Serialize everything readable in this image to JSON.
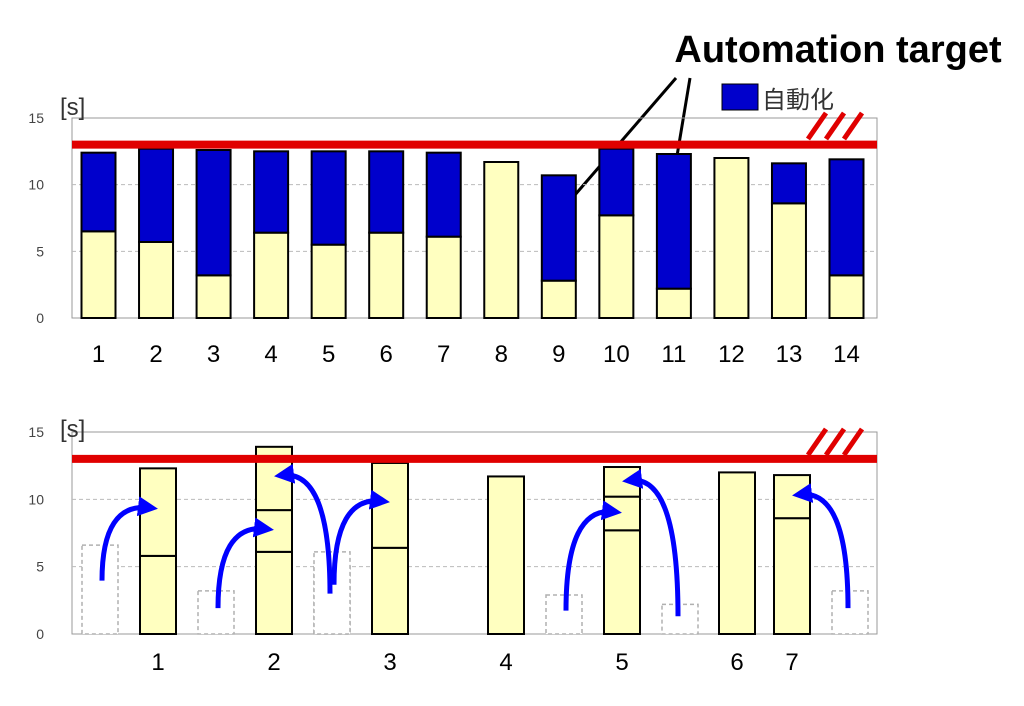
{
  "annotation": "Automation target",
  "chart_data": [
    {
      "type": "bar",
      "stacked": true,
      "ylabel": "[s]",
      "ylim": [
        0,
        15
      ],
      "yticks": [
        0,
        5,
        10,
        15
      ],
      "grid": true,
      "legend": {
        "label": "自動化",
        "color": "#0000cc",
        "position": "top-right"
      },
      "reference_line": {
        "value": 13,
        "color": "#e00000"
      },
      "categories": [
        "1",
        "2",
        "3",
        "4",
        "5",
        "6",
        "7",
        "8",
        "9",
        "10",
        "11",
        "12",
        "13",
        "14"
      ],
      "series": [
        {
          "color": "#ffffc0",
          "values": [
            6.5,
            5.7,
            3.2,
            6.4,
            5.5,
            6.4,
            6.1,
            11.7,
            2.8,
            7.7,
            2.2,
            12.0,
            8.6,
            3.2
          ]
        },
        {
          "name": "自動化",
          "color": "#0000cc",
          "values": [
            5.9,
            7.0,
            9.4,
            6.1,
            7.0,
            6.1,
            6.3,
            0,
            7.9,
            5.0,
            10.1,
            0,
            3.0,
            8.7
          ]
        }
      ],
      "annotated_categories": [
        "9",
        "11"
      ]
    },
    {
      "type": "bar",
      "ylabel": "[s]",
      "ylim": [
        0,
        15
      ],
      "yticks": [
        0,
        5,
        10,
        15
      ],
      "grid": true,
      "reference_line": {
        "value": 13,
        "color": "#e00000"
      },
      "categories": [
        "1",
        "2",
        "3",
        "4",
        "5",
        "6",
        "7"
      ],
      "stations": [
        {
          "segments": [
            5.8,
            6.5
          ],
          "moved_from": [
            6.6
          ]
        },
        {
          "segments": [
            6.1,
            3.1,
            4.7
          ],
          "moved_from": [
            3.2,
            5.0
          ]
        },
        {
          "segments": [
            6.4,
            6.3
          ],
          "moved_from": [
            6.1
          ]
        },
        {
          "segments": [
            11.7
          ],
          "moved_from": []
        },
        {
          "segments": [
            7.7,
            2.5,
            2.2
          ],
          "moved_from": [
            2.9,
            2.2
          ]
        },
        {
          "segments": [
            12.0
          ],
          "moved_from": []
        },
        {
          "segments": [
            8.6,
            3.2
          ],
          "moved_from": [
            3.2
          ]
        }
      ],
      "colors": {
        "bar": "#ffffc0",
        "ghost": "#b0b0b0",
        "arrow": "#0000ff"
      }
    }
  ]
}
